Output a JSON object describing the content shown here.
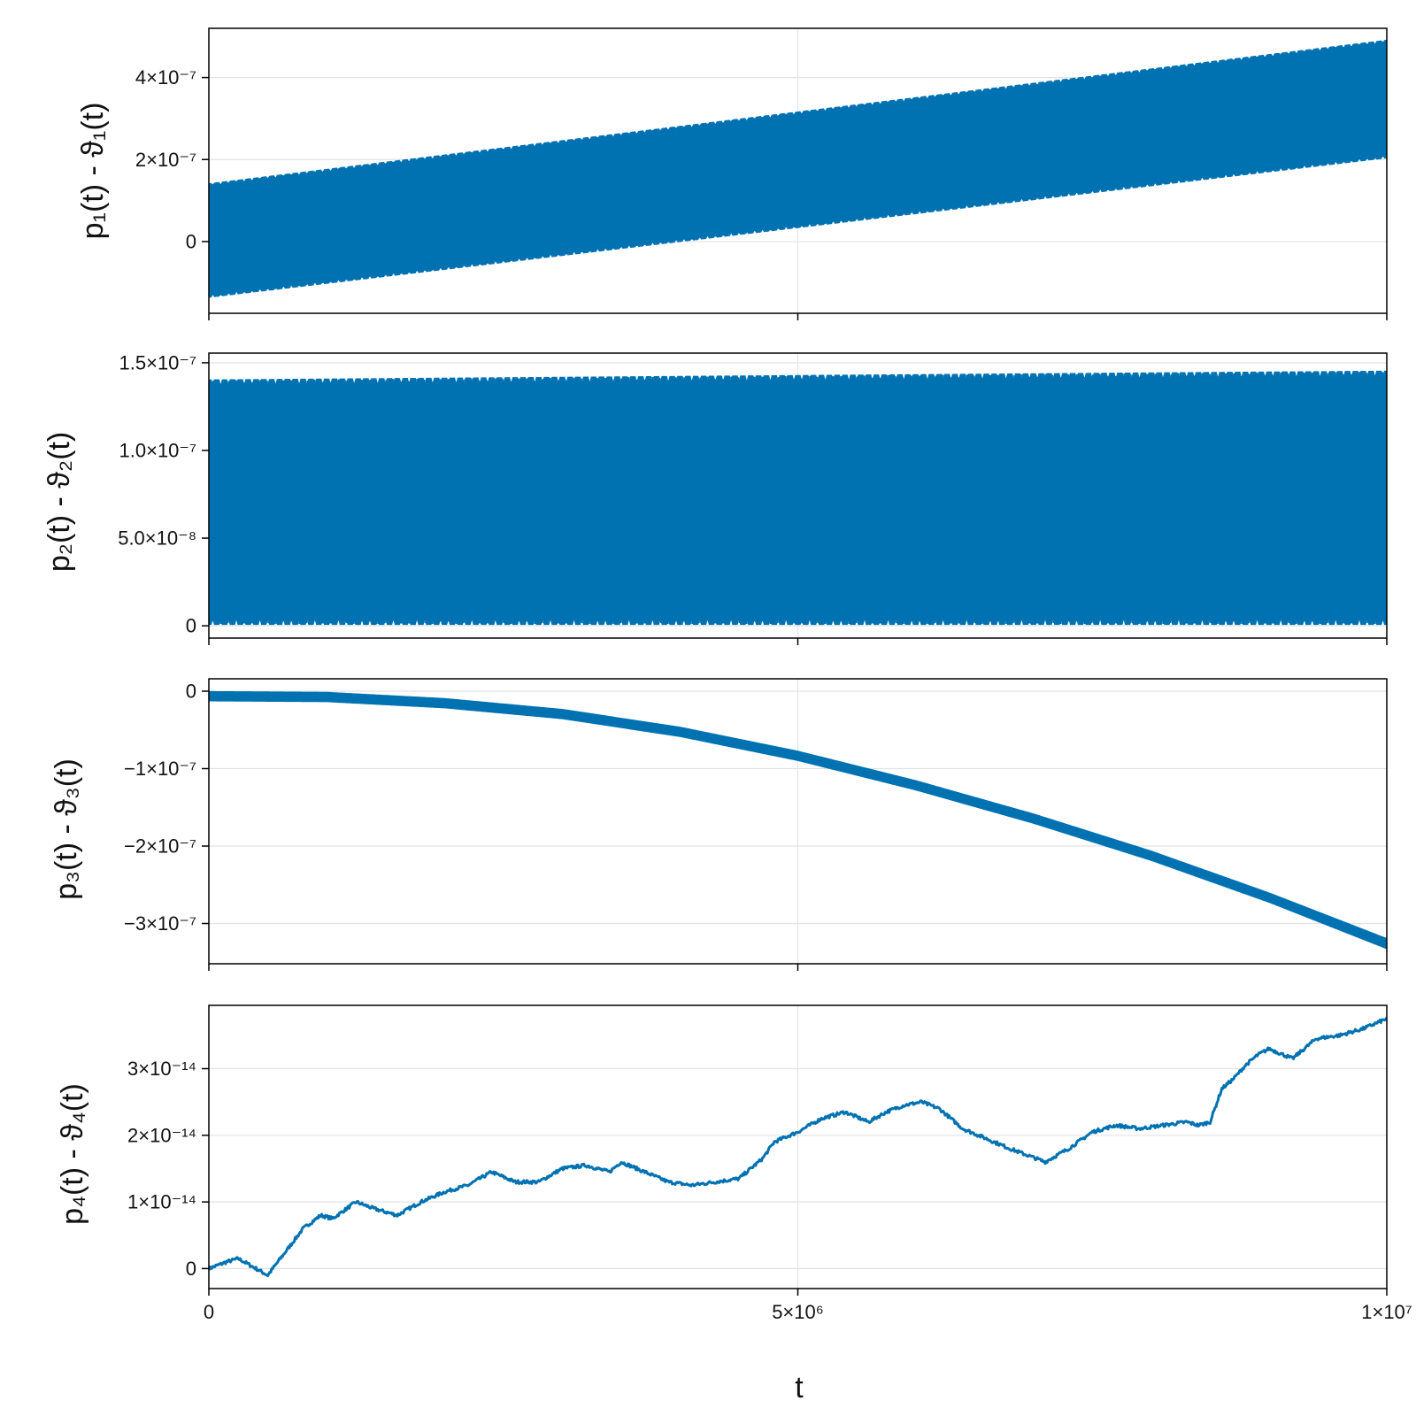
{
  "chart_data": [
    {
      "type": "line",
      "ylabel": "p₁(t) - ϑ₁(t)",
      "xlabel": "",
      "xlim": [
        0,
        10000000
      ],
      "ylim": [
        -1.75e-07,
        5.2e-07
      ],
      "grid": true,
      "yticks": [
        {
          "label": "0",
          "value": 0
        },
        {
          "label": "2×10⁻⁷",
          "value": 2e-07
        },
        {
          "label": "4×10⁻⁷",
          "value": 4e-07
        }
      ],
      "xticks": [
        {
          "label": "",
          "value": 0
        },
        {
          "label": "",
          "value": 5000000
        },
        {
          "label": "",
          "value": 10000000
        }
      ],
      "series": [
        {
          "color": "#0072b2",
          "style": "dense-oscillation-band",
          "x": [
            0,
            10000000
          ],
          "band_lower": [
            -1.35e-07,
            2.05e-07
          ],
          "band_upper": [
            1.4e-07,
            4.9e-07
          ],
          "oscillation_cycles": 150
        }
      ]
    },
    {
      "type": "line",
      "ylabel": "p₂(t) - ϑ₂(t)",
      "xlabel": "",
      "xlim": [
        0,
        10000000
      ],
      "ylim": [
        -7e-09,
        1.555e-07
      ],
      "grid": true,
      "yticks": [
        {
          "label": "0",
          "value": 0
        },
        {
          "label": "5.0×10⁻⁸",
          "value": 5e-08
        },
        {
          "label": "1.0×10⁻⁷",
          "value": 1e-07
        },
        {
          "label": "1.5×10⁻⁷",
          "value": 1.5e-07
        }
      ],
      "xticks": [
        {
          "label": "",
          "value": 0
        },
        {
          "label": "",
          "value": 5000000
        },
        {
          "label": "",
          "value": 10000000
        }
      ],
      "series": [
        {
          "color": "#0072b2",
          "style": "dense-oscillation-band",
          "x": [
            0,
            10000000
          ],
          "band_lower": [
            1e-09,
            1e-09
          ],
          "band_upper": [
            1.4e-07,
            1.45e-07
          ],
          "oscillation_cycles": 150
        }
      ]
    },
    {
      "type": "line",
      "ylabel": "p₃(t) - ϑ₃(t)",
      "xlabel": "",
      "xlim": [
        0,
        10000000
      ],
      "ylim": [
        -3.52e-07,
        1.6e-08
      ],
      "grid": true,
      "yticks": [
        {
          "label": "−3×10⁻⁷",
          "value": -3e-07
        },
        {
          "label": "−2×10⁻⁷",
          "value": -2e-07
        },
        {
          "label": "−1×10⁻⁷",
          "value": -1e-07
        },
        {
          "label": "0",
          "value": 0
        }
      ],
      "xticks": [
        {
          "label": "",
          "value": 0
        },
        {
          "label": "",
          "value": 5000000
        },
        {
          "label": "",
          "value": 10000000
        }
      ],
      "series": [
        {
          "color": "#0072b2",
          "style": "narrow-band",
          "x": [
            0,
            1000000,
            2000000,
            3000000,
            4000000,
            5000000,
            6000000,
            7000000,
            8000000,
            9000000,
            10000000
          ],
          "band_lower": [
            -1.2e-08,
            -1.3e-08,
            -2.1e-08,
            -3.5e-08,
            -5.8e-08,
            -8.9e-08,
            -1.27e-07,
            -1.7e-07,
            -2.18e-07,
            -2.72e-07,
            -3.32e-07
          ],
          "band_upper": [
            -1e-09,
            -2e-09,
            -1e-08,
            -2.4e-08,
            -4.7e-08,
            -7.8e-08,
            -1.16e-07,
            -1.59e-07,
            -2.07e-07,
            -2.61e-07,
            -3.2e-07
          ]
        }
      ]
    },
    {
      "type": "line",
      "ylabel": "p₄(t) - ϑ₄(t)",
      "xlabel": "t",
      "xlim": [
        0,
        10000000
      ],
      "ylim": [
        -3e-15,
        3.95e-14
      ],
      "grid": true,
      "yticks": [
        {
          "label": "0",
          "value": 0
        },
        {
          "label": "1×10⁻¹⁴",
          "value": 1e-14
        },
        {
          "label": "2×10⁻¹⁴",
          "value": 2e-14
        },
        {
          "label": "3×10⁻¹⁴",
          "value": 3e-14
        }
      ],
      "xticks": [
        {
          "label": "0",
          "value": 0
        },
        {
          "label": "5×10⁶",
          "value": 5000000
        },
        {
          "label": "1×10⁷",
          "value": 10000000
        }
      ],
      "series": [
        {
          "color": "#0072b2",
          "style": "line",
          "x": [
            0,
            150000,
            250000,
            350000,
            500000,
            650000,
            800000,
            950000,
            1050000,
            1250000,
            1400000,
            1600000,
            1800000,
            2000000,
            2200000,
            2400000,
            2600000,
            2800000,
            3000000,
            3200000,
            3400000,
            3500000,
            3700000,
            3900000,
            4100000,
            4300000,
            4500000,
            4700000,
            4800000,
            5000000,
            5200000,
            5400000,
            5600000,
            5750000,
            5900000,
            6050000,
            6200000,
            6400000,
            6600000,
            6800000,
            6950000,
            7100000,
            7300000,
            7500000,
            7700000,
            7900000,
            8100000,
            8300000,
            8400000,
            8500000,
            8600000,
            8700000,
            8800000,
            8900000,
            9000000,
            9200000,
            9400000,
            9600000,
            9800000,
            10000000
          ],
          "y": [
            0,
            1e-15,
            1.5e-15,
            5e-16,
            -1e-15,
            2.5e-15,
            6e-15,
            8e-15,
            7.5e-15,
            1e-14,
            9e-15,
            8e-15,
            1e-14,
            1.15e-14,
            1.25e-14,
            1.45e-14,
            1.3e-14,
            1.3e-14,
            1.5e-14,
            1.55e-14,
            1.45e-14,
            1.6e-14,
            1.45e-14,
            1.3e-14,
            1.25e-14,
            1.3e-14,
            1.35e-14,
            1.65e-14,
            1.9e-14,
            2.05e-14,
            2.25e-14,
            2.35e-14,
            2.2e-14,
            2.35e-14,
            2.45e-14,
            2.5e-14,
            2.4e-14,
            2.1e-14,
            1.95e-14,
            1.8e-14,
            1.7e-14,
            1.6e-14,
            1.8e-14,
            2.05e-14,
            2.15e-14,
            2.1e-14,
            2.15e-14,
            2.2e-14,
            2.15e-14,
            2.2e-14,
            2.7e-14,
            2.85e-14,
            3.05e-14,
            3.2e-14,
            3.3e-14,
            3.15e-14,
            3.45e-14,
            3.5e-14,
            3.6e-14,
            3.75e-14
          ]
        }
      ]
    }
  ]
}
